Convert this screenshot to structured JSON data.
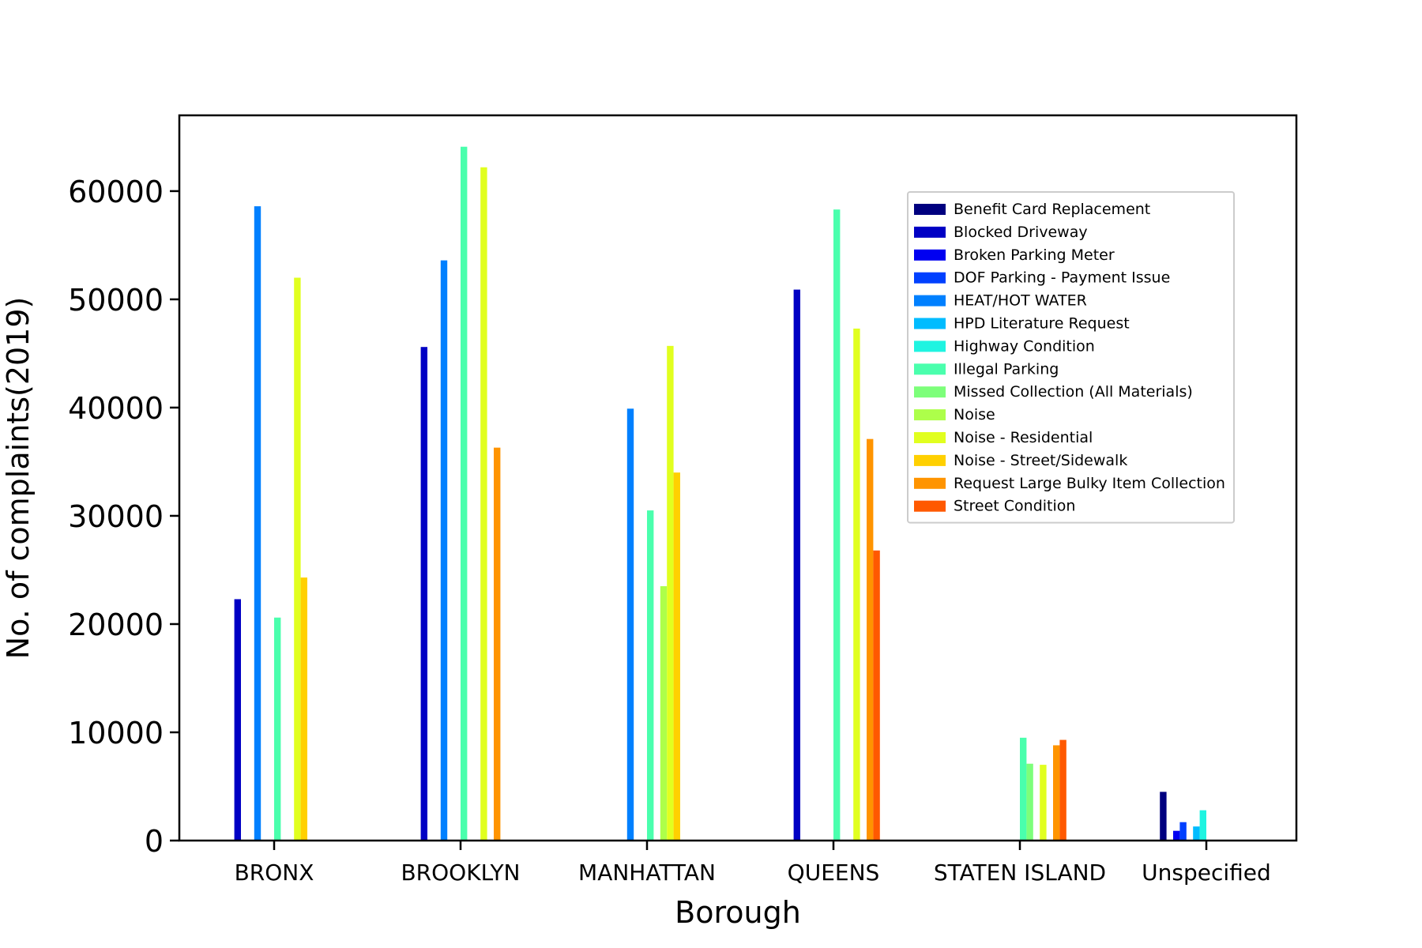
{
  "chart_data": {
    "type": "bar",
    "title": "",
    "xlabel": "Borough",
    "ylabel": "No. of complaints(2019)",
    "ylim": [
      0,
      67000
    ],
    "yticks": [
      0,
      10000,
      20000,
      30000,
      40000,
      50000,
      60000
    ],
    "legend_position": "upper-right",
    "grid": false,
    "categories": [
      "BRONX",
      "BROOKLYN",
      "MANHATTAN",
      "QUEENS",
      "STATEN ISLAND",
      "Unspecified"
    ],
    "series": [
      {
        "name": "Benefit Card Replacement",
        "color": "#00007f",
        "values": [
          0,
          0,
          0,
          0,
          0,
          4500
        ]
      },
      {
        "name": "Blocked Driveway",
        "color": "#0000c4",
        "values": [
          22300,
          45600,
          0,
          50900,
          0,
          0
        ]
      },
      {
        "name": "Broken Parking Meter",
        "color": "#0000f1",
        "values": [
          0,
          0,
          0,
          0,
          0,
          900
        ]
      },
      {
        "name": "DOF Parking - Payment Issue",
        "color": "#0040ff",
        "values": [
          0,
          0,
          0,
          0,
          0,
          1700
        ]
      },
      {
        "name": "HEAT/HOT WATER",
        "color": "#0080ff",
        "values": [
          58600,
          53600,
          39900,
          0,
          0,
          0
        ]
      },
      {
        "name": "HPD Literature Request",
        "color": "#00bcff",
        "values": [
          0,
          0,
          0,
          0,
          0,
          1300
        ]
      },
      {
        "name": "Highway Condition",
        "color": "#1ff4e1",
        "values": [
          0,
          0,
          0,
          0,
          0,
          2800
        ]
      },
      {
        "name": "Illegal Parking",
        "color": "#4affad",
        "values": [
          20600,
          64100,
          30500,
          58300,
          9500,
          0
        ]
      },
      {
        "name": "Missed Collection (All Materials)",
        "color": "#7dff7a",
        "values": [
          0,
          0,
          0,
          0,
          7100,
          0
        ]
      },
      {
        "name": "Noise",
        "color": "#adff4a",
        "values": [
          0,
          0,
          23500,
          0,
          0,
          0
        ]
      },
      {
        "name": "Noise - Residential",
        "color": "#e1ff1f",
        "values": [
          52000,
          62200,
          45700,
          47300,
          7000,
          0
        ]
      },
      {
        "name": "Noise - Street/Sidewalk",
        "color": "#ffd000",
        "values": [
          24300,
          0,
          34000,
          0,
          0,
          0
        ]
      },
      {
        "name": "Request Large Bulky Item Collection",
        "color": "#ff9400",
        "values": [
          0,
          36300,
          0,
          37100,
          8800,
          0
        ]
      },
      {
        "name": "Street Condition",
        "color": "#ff5900",
        "values": [
          0,
          0,
          0,
          26800,
          9300,
          0
        ]
      }
    ]
  }
}
